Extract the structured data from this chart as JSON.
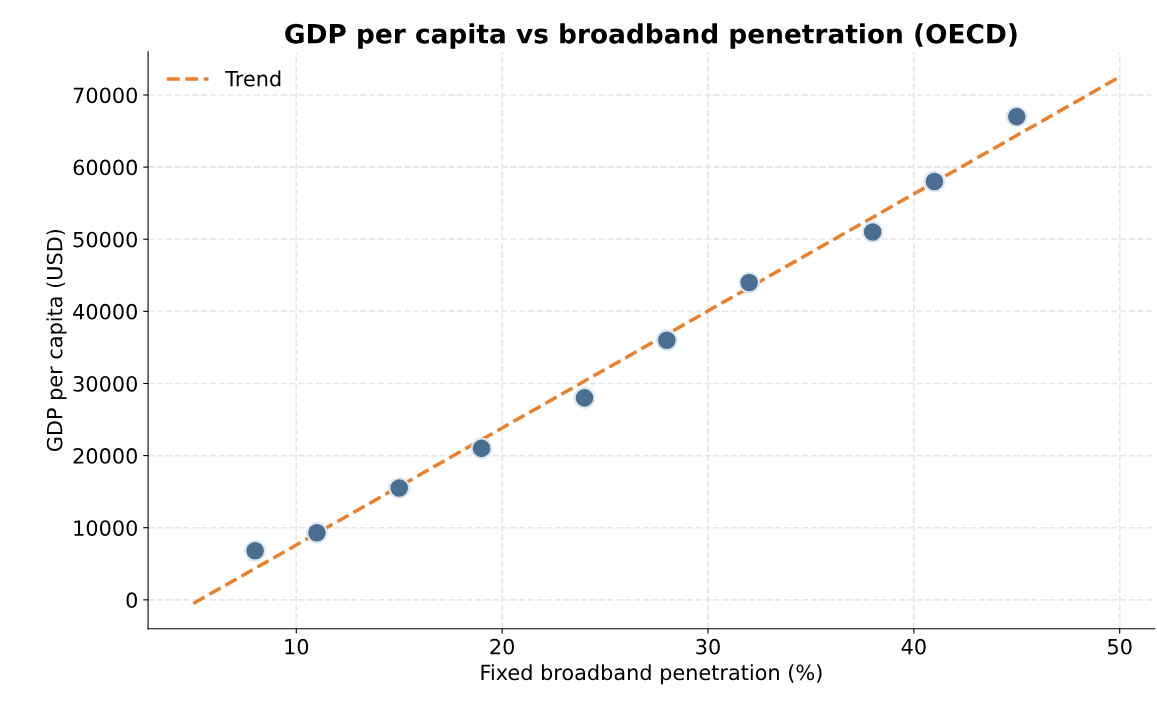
{
  "chart_data": {
    "type": "scatter",
    "title": "GDP per capita vs broadband penetration (OECD)",
    "xlabel": "Fixed broadband penetration (%)",
    "ylabel": "GDP per capita (USD)",
    "series": [
      {
        "color": "#4a6d92",
        "x": [
          8,
          11,
          15,
          19,
          24,
          28,
          32,
          38,
          41,
          45
        ],
        "values": [
          6800,
          9300,
          15500,
          21000,
          28000,
          36000,
          44000,
          51000,
          58000,
          67000
        ],
        "marker": "circle"
      },
      {
        "type": "line",
        "name": "Trend",
        "color": "#e8802e",
        "x": [
          5,
          50
        ],
        "values": [
          -500,
          72500
        ],
        "line_style": "dashed",
        "marker": "none"
      }
    ],
    "xlim": [
      2.8,
      51.7
    ],
    "ylim": [
      -4000,
      76000
    ],
    "xticks": [
      10,
      20,
      30,
      40,
      50
    ],
    "yticks": [
      0,
      10000,
      20000,
      30000,
      40000,
      50000,
      60000,
      70000
    ],
    "grid": true,
    "legend": "top left"
  }
}
